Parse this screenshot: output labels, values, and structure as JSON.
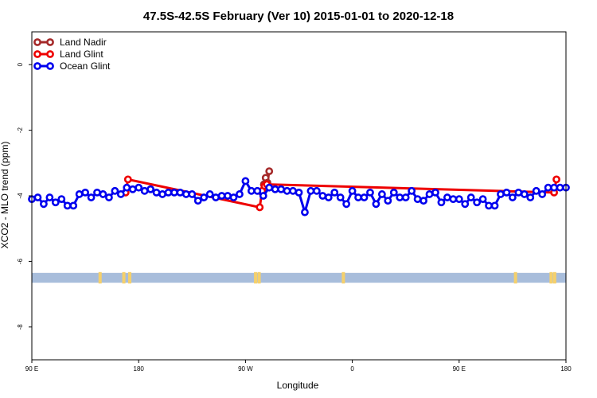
{
  "chart_data": {
    "type": "line",
    "title": "47.5S-42.5S February (Ver 10)   2015-01-01 to 2020-12-18",
    "xlabel": "Longitude",
    "ylabel": "XCO2 - MLO trend (ppm)",
    "xlim": [
      90,
      540
    ],
    "ylim": [
      -9,
      1
    ],
    "x_ticks": [
      {
        "value": 90,
        "label": "90 E"
      },
      {
        "value": 180,
        "label": "180"
      },
      {
        "value": 270,
        "label": "90 W"
      },
      {
        "value": 360,
        "label": "0"
      },
      {
        "value": 450,
        "label": "90 E"
      },
      {
        "value": 540,
        "label": "180"
      }
    ],
    "y_ticks": [
      {
        "value": 0,
        "label": "0"
      },
      {
        "value": -2,
        "label": "-2"
      },
      {
        "value": -4,
        "label": "-4"
      },
      {
        "value": -6,
        "label": "-6"
      },
      {
        "value": -8,
        "label": "-8"
      }
    ],
    "grid": false,
    "legend_position": "top-left",
    "land_band": {
      "y_min": -6.65,
      "y_max": -6.35,
      "color": "#a8bddb"
    },
    "land_marks": {
      "color": "#f5d06b",
      "x": [
        147.5,
        167.5,
        172.5,
        278.5,
        281.5,
        352.5,
        497.5,
        527.5,
        530.5
      ]
    },
    "series": [
      {
        "name": "Land Nadir",
        "color": "#a52a2a",
        "x": [
          284,
          285.5,
          287,
          288.5,
          290
        ],
        "y": [
          -3.9,
          -3.65,
          -3.45,
          -3.6,
          -3.25
        ]
      },
      {
        "name": "Land Glint",
        "color": "#ee0000",
        "x": [
          169,
          171,
          282,
          284,
          286,
          288,
          530,
          532
        ],
        "y": [
          -3.9,
          -3.5,
          -4.35,
          -3.85,
          -3.7,
          -3.65,
          -3.9,
          -3.5
        ]
      },
      {
        "name": "Ocean Glint",
        "color": "#0000ee",
        "x": [
          90,
          95,
          100,
          105,
          110,
          115,
          120,
          125,
          130,
          135,
          140,
          145,
          150,
          155,
          160,
          165,
          170,
          175,
          180,
          185,
          190,
          195,
          200,
          205,
          210,
          215,
          220,
          225,
          230,
          235,
          240,
          245,
          250,
          255,
          260,
          265,
          270,
          275,
          280,
          285,
          290,
          295,
          300,
          305,
          310,
          315,
          320,
          325,
          330,
          335,
          340,
          345,
          350,
          355,
          360,
          365,
          370,
          375,
          380,
          385,
          390,
          395,
          400,
          405,
          410,
          415,
          420,
          425,
          430,
          435,
          440,
          445,
          450,
          455,
          460,
          465,
          470,
          475,
          480,
          485,
          490,
          495,
          500,
          505,
          510,
          515,
          520,
          525,
          530,
          535,
          540
        ],
        "y": [
          -4.1,
          -4.05,
          -4.25,
          -4.05,
          -4.2,
          -4.1,
          -4.3,
          -4.3,
          -3.95,
          -3.9,
          -4.05,
          -3.9,
          -3.95,
          -4.05,
          -3.85,
          -3.95,
          -3.75,
          -3.8,
          -3.75,
          -3.85,
          -3.8,
          -3.9,
          -3.95,
          -3.9,
          -3.9,
          -3.9,
          -3.95,
          -3.95,
          -4.15,
          -4.05,
          -3.95,
          -4.05,
          -4.0,
          -4.0,
          -4.05,
          -3.95,
          -3.55,
          -3.85,
          -3.85,
          -4.0,
          -3.75,
          -3.8,
          -3.8,
          -3.85,
          -3.85,
          -3.9,
          -4.5,
          -3.85,
          -3.85,
          -4.0,
          -4.05,
          -3.9,
          -4.05,
          -4.25,
          -3.85,
          -4.05,
          -4.05,
          -3.9,
          -4.25,
          -3.95,
          -4.15,
          -3.9,
          -4.05,
          -4.05,
          -3.85,
          -4.1,
          -4.15,
          -3.95,
          -3.9,
          -4.2,
          -4.05,
          -4.1,
          -4.1,
          -4.25,
          -4.05,
          -4.2,
          -4.1,
          -4.3,
          -4.3,
          -3.95,
          -3.9,
          -4.05,
          -3.9,
          -3.95,
          -4.05,
          -3.85,
          -3.95,
          -3.75,
          -3.75,
          -3.75,
          -3.75
        ]
      }
    ]
  }
}
